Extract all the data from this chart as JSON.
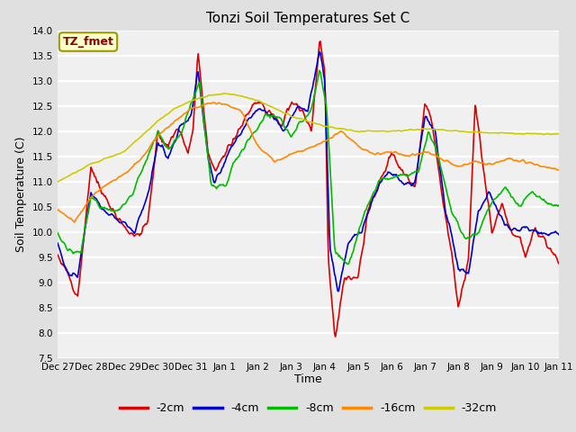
{
  "title": "Tonzi Soil Temperatures Set C",
  "xlabel": "Time",
  "ylabel": "Soil Temperature (C)",
  "ylim": [
    7.5,
    14.0
  ],
  "yticks": [
    7.5,
    8.0,
    8.5,
    9.0,
    9.5,
    10.0,
    10.5,
    11.0,
    11.5,
    12.0,
    12.5,
    13.0,
    13.5,
    14.0
  ],
  "x_labels": [
    "Dec 27",
    "Dec 28",
    "Dec 29",
    "Dec 30",
    "Dec 31",
    "Jan 1",
    "Jan 2",
    "Jan 3",
    "Jan 4",
    "Jan 5",
    "Jan 6",
    "Jan 7",
    "Jan 8",
    "Jan 9",
    "Jan 10",
    "Jan 11"
  ],
  "colors": {
    "-2cm": "#dd0000",
    "-4cm": "#0000cc",
    "-8cm": "#00bb00",
    "-16cm": "#ff8800",
    "-32cm": "#cccc00"
  },
  "tz_label": "TZ_fmet",
  "tz_facecolor": "#ffffcc",
  "tz_edgecolor": "#999900",
  "tz_textcolor": "#880000",
  "bg_color": "#e0e0e0",
  "plot_bg": "#f0f0f0",
  "grid_color": "#ffffff",
  "linewidth": 1.2
}
